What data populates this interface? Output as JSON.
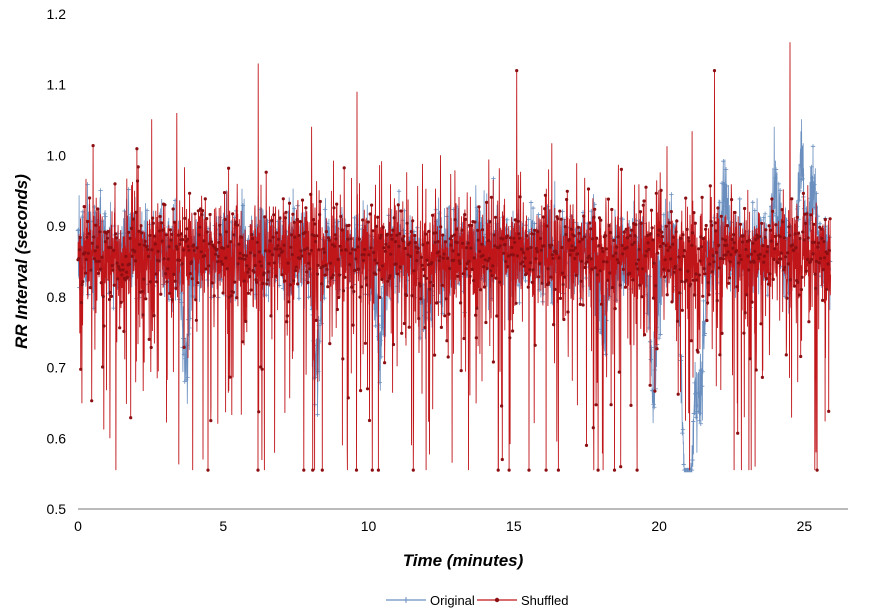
{
  "chart_data": {
    "type": "line",
    "title": "",
    "xlabel": "Time (minutes)",
    "ylabel": "RR Interval (seconds)",
    "xlim": [
      0,
      26.5
    ],
    "ylim": [
      0.5,
      1.2
    ],
    "x_ticks": [
      "0",
      "5",
      "10",
      "15",
      "20",
      "25"
    ],
    "y_ticks": [
      "0.5",
      "0.6",
      "0.7",
      "0.8",
      "0.9",
      "1.0",
      "1.1",
      "1.2"
    ],
    "grid": false,
    "legend_position": "bottom",
    "sampling": "one RR value per beat, roughly every 0.47 s from 0 to 25.9 minutes",
    "series": [
      {
        "name": "Original",
        "color": "#6a8fbf",
        "marker": "plus",
        "slow_dips": [
          {
            "t": 3.7,
            "min": 0.71
          },
          {
            "t": 8.2,
            "min": 0.7
          },
          {
            "t": 10.4,
            "min": 0.73
          },
          {
            "t": 12.0,
            "min": 0.77
          },
          {
            "t": 18.1,
            "min": 0.75
          },
          {
            "t": 19.8,
            "min": 0.67
          },
          {
            "t": 20.9,
            "min": 0.6
          },
          {
            "t": 21.05,
            "min": 0.56
          },
          {
            "t": 21.4,
            "min": 0.65
          }
        ],
        "peaks": [
          {
            "t": 0.8,
            "max": 0.95
          },
          {
            "t": 22.3,
            "max": 1.01
          },
          {
            "t": 24.0,
            "max": 1.05
          },
          {
            "t": 24.9,
            "max": 1.12
          },
          {
            "t": 25.3,
            "max": 1.05
          }
        ]
      },
      {
        "name": "Shuffled",
        "color": "#c0161a",
        "marker": "dot",
        "peaks": [
          {
            "t": 3.4,
            "max": 1.06
          },
          {
            "t": 6.2,
            "max": 1.13
          },
          {
            "t": 9.6,
            "max": 1.09
          },
          {
            "t": 15.1,
            "max": 1.12
          },
          {
            "t": 21.9,
            "max": 1.12
          },
          {
            "t": 24.5,
            "max": 1.16
          }
        ],
        "troughs": [
          {
            "t": 1.1,
            "min": 0.6
          },
          {
            "t": 4.3,
            "min": 0.57
          },
          {
            "t": 9.1,
            "min": 0.59
          },
          {
            "t": 14.6,
            "min": 0.57
          },
          {
            "t": 17.5,
            "min": 0.59
          },
          {
            "t": 23.3,
            "min": 0.56
          },
          {
            "t": 25.4,
            "min": 0.58
          }
        ]
      }
    ]
  }
}
